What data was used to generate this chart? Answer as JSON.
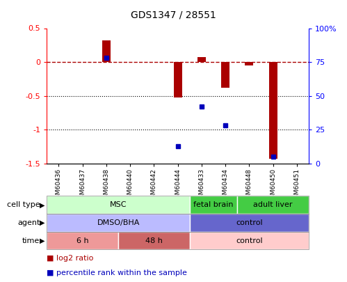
{
  "title": "GDS1347 / 28551",
  "samples": [
    "GSM60436",
    "GSM60437",
    "GSM60438",
    "GSM60440",
    "GSM60442",
    "GSM60444",
    "GSM60433",
    "GSM60434",
    "GSM60448",
    "GSM60450",
    "GSM60451"
  ],
  "log2_ratio": [
    0.0,
    0.0,
    0.32,
    0.0,
    0.0,
    -0.52,
    0.07,
    -0.38,
    -0.05,
    -1.43,
    0.0
  ],
  "percentile_rank": [
    null,
    null,
    78,
    null,
    null,
    13,
    42,
    28,
    null,
    5,
    null
  ],
  "ylim_left": [
    -1.5,
    0.5
  ],
  "ylim_right": [
    0,
    100
  ],
  "right_ticks": [
    0,
    25,
    50,
    75,
    100
  ],
  "right_tick_labels": [
    "0",
    "25",
    "50",
    "75",
    "100%"
  ],
  "left_ticks": [
    -1.5,
    -1.0,
    -0.5,
    0.0,
    0.5
  ],
  "left_tick_labels": [
    "-1.5",
    "-1",
    "-0.5",
    "0",
    "0.5"
  ],
  "dotted_lines": [
    -0.5,
    -1.0
  ],
  "bar_color": "#aa0000",
  "dot_color": "#0000bb",
  "cell_type_groups": [
    {
      "label": "MSC",
      "start": 0,
      "end": 5,
      "color": "#ccffcc"
    },
    {
      "label": "fetal brain",
      "start": 6,
      "end": 7,
      "color": "#44cc44"
    },
    {
      "label": "adult liver",
      "start": 8,
      "end": 10,
      "color": "#44cc44"
    }
  ],
  "agent_groups": [
    {
      "label": "DMSO/BHA",
      "start": 0,
      "end": 5,
      "color": "#bbbbff"
    },
    {
      "label": "control",
      "start": 6,
      "end": 10,
      "color": "#6666cc"
    }
  ],
  "time_groups": [
    {
      "label": "6 h",
      "start": 0,
      "end": 2,
      "color": "#ee9999"
    },
    {
      "label": "48 h",
      "start": 3,
      "end": 5,
      "color": "#cc6666"
    },
    {
      "label": "control",
      "start": 6,
      "end": 10,
      "color": "#ffcccc"
    }
  ],
  "row_labels": [
    "cell type",
    "agent",
    "time"
  ],
  "legend_red_label": "log2 ratio",
  "legend_blue_label": "percentile rank within the sample",
  "legend_red_color": "#aa0000",
  "legend_blue_color": "#0000bb",
  "background_color": "#ffffff"
}
